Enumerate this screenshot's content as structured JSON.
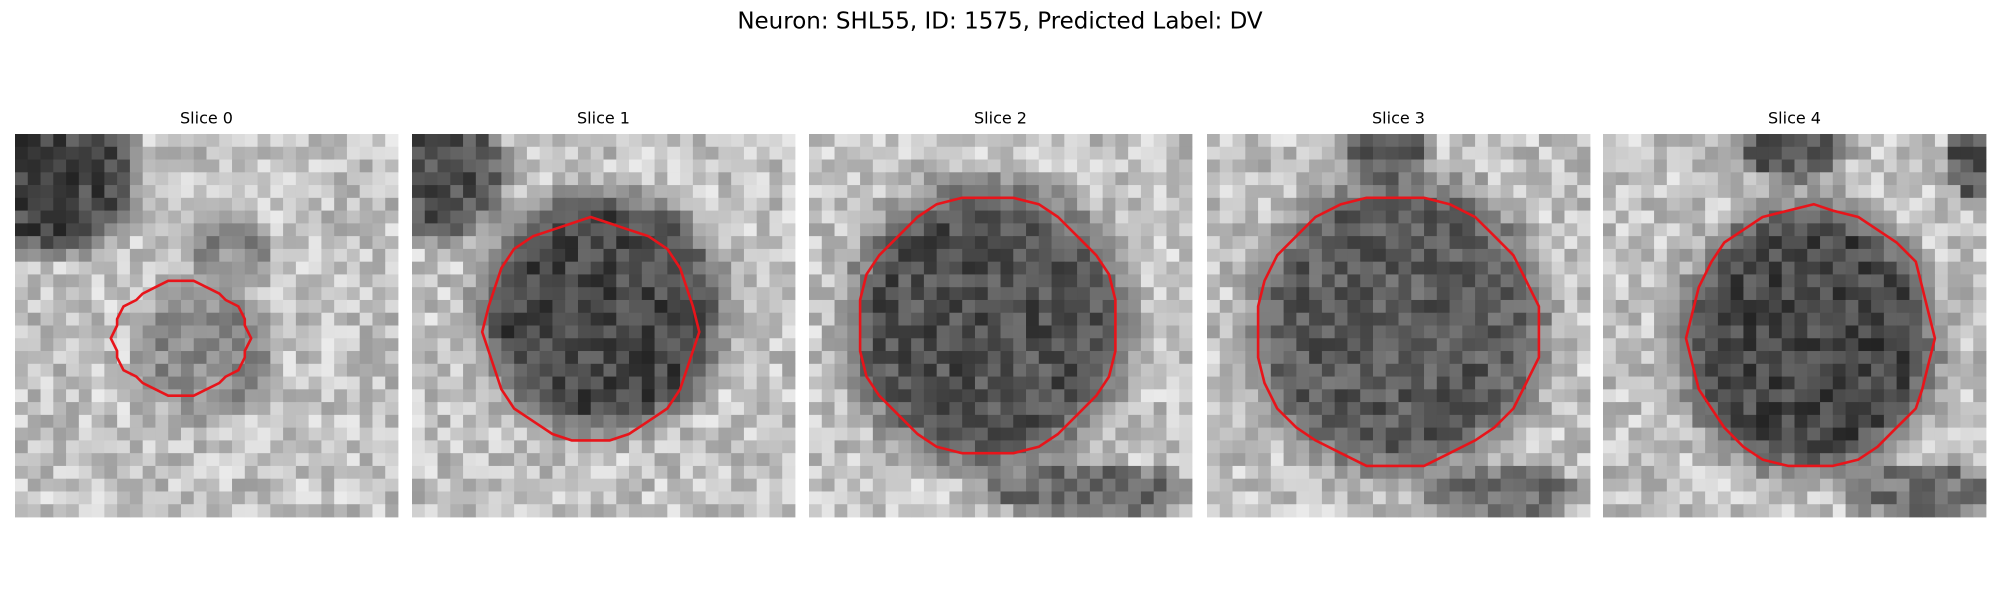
{
  "title": "Neuron: SHL55, ID: 1575, Predicted Label: DV",
  "panels": [
    {
      "title": "Slice 0"
    },
    {
      "title": "Slice 1"
    },
    {
      "title": "Slice 2"
    },
    {
      "title": "Slice 3"
    },
    {
      "title": "Slice 4"
    }
  ]
}
